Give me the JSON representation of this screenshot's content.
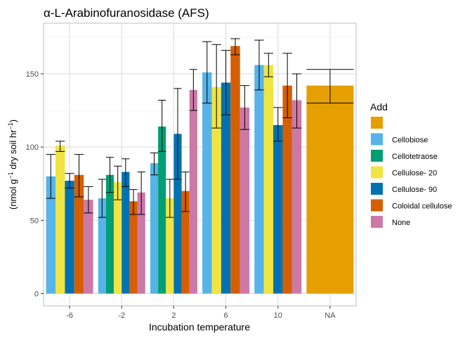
{
  "chart_data": {
    "type": "bar",
    "title": "α-L-Arabinofuranosidase (AFS)",
    "xlabel": "Incubation temperature",
    "ylabel": {
      "prefix": "(nmol g",
      "sup1": "−1",
      "middle": " dry soil hr",
      "sup2": "−1",
      "suffix": ")"
    },
    "categories": [
      "-6",
      "-2",
      "2",
      "6",
      "10",
      "NA"
    ],
    "ylim": [
      0,
      180
    ],
    "yticks": [
      0,
      50,
      100,
      150
    ],
    "grid": true,
    "legend": {
      "title": "Add",
      "position": "right"
    },
    "series": [
      {
        "name": "",
        "color": "#E69F00",
        "values": [
          null,
          null,
          null,
          null,
          null,
          142
        ],
        "err_low": [
          null,
          null,
          null,
          null,
          null,
          130
        ],
        "err_high": [
          null,
          null,
          null,
          null,
          null,
          153
        ]
      },
      {
        "name": "Cellobiose",
        "color": "#56B4E9",
        "values": [
          80,
          65,
          89,
          151,
          156,
          null
        ],
        "err_low": [
          65,
          52,
          81,
          130,
          139,
          null
        ],
        "err_high": [
          95,
          78,
          96,
          172,
          173,
          null
        ]
      },
      {
        "name": "Cellotetraose",
        "color": "#009E73",
        "values": [
          null,
          81,
          114,
          null,
          null,
          null
        ],
        "err_low": [
          null,
          69,
          97,
          null,
          null,
          null
        ],
        "err_high": [
          null,
          93,
          132,
          null,
          null,
          null
        ]
      },
      {
        "name": "Cellulose- 20",
        "color": "#F0E442",
        "values": [
          101,
          76,
          65,
          141,
          156,
          null
        ],
        "err_low": [
          97,
          64,
          52,
          113,
          148,
          null
        ],
        "err_high": [
          104,
          87,
          78,
          170,
          164,
          null
        ]
      },
      {
        "name": "Cellulose- 90",
        "color": "#0072B2",
        "values": [
          77,
          83,
          109,
          144,
          115,
          null
        ],
        "err_low": [
          72,
          73,
          78,
          122,
          104,
          null
        ],
        "err_high": [
          82,
          92,
          140,
          166,
          127,
          null
        ]
      },
      {
        "name": "Coloidal cellulose",
        "color": "#D55E00",
        "values": [
          81,
          63,
          70,
          169,
          142,
          null
        ],
        "err_low": [
          66,
          54,
          56,
          163,
          120,
          null
        ],
        "err_high": [
          95,
          71,
          83,
          174,
          164,
          null
        ]
      },
      {
        "name": "None",
        "color": "#CC79A7",
        "values": [
          64,
          69,
          139,
          127,
          132,
          null
        ],
        "err_low": [
          55,
          54,
          125,
          112,
          113,
          null
        ],
        "err_high": [
          73,
          83,
          153,
          142,
          150,
          null
        ]
      }
    ]
  }
}
